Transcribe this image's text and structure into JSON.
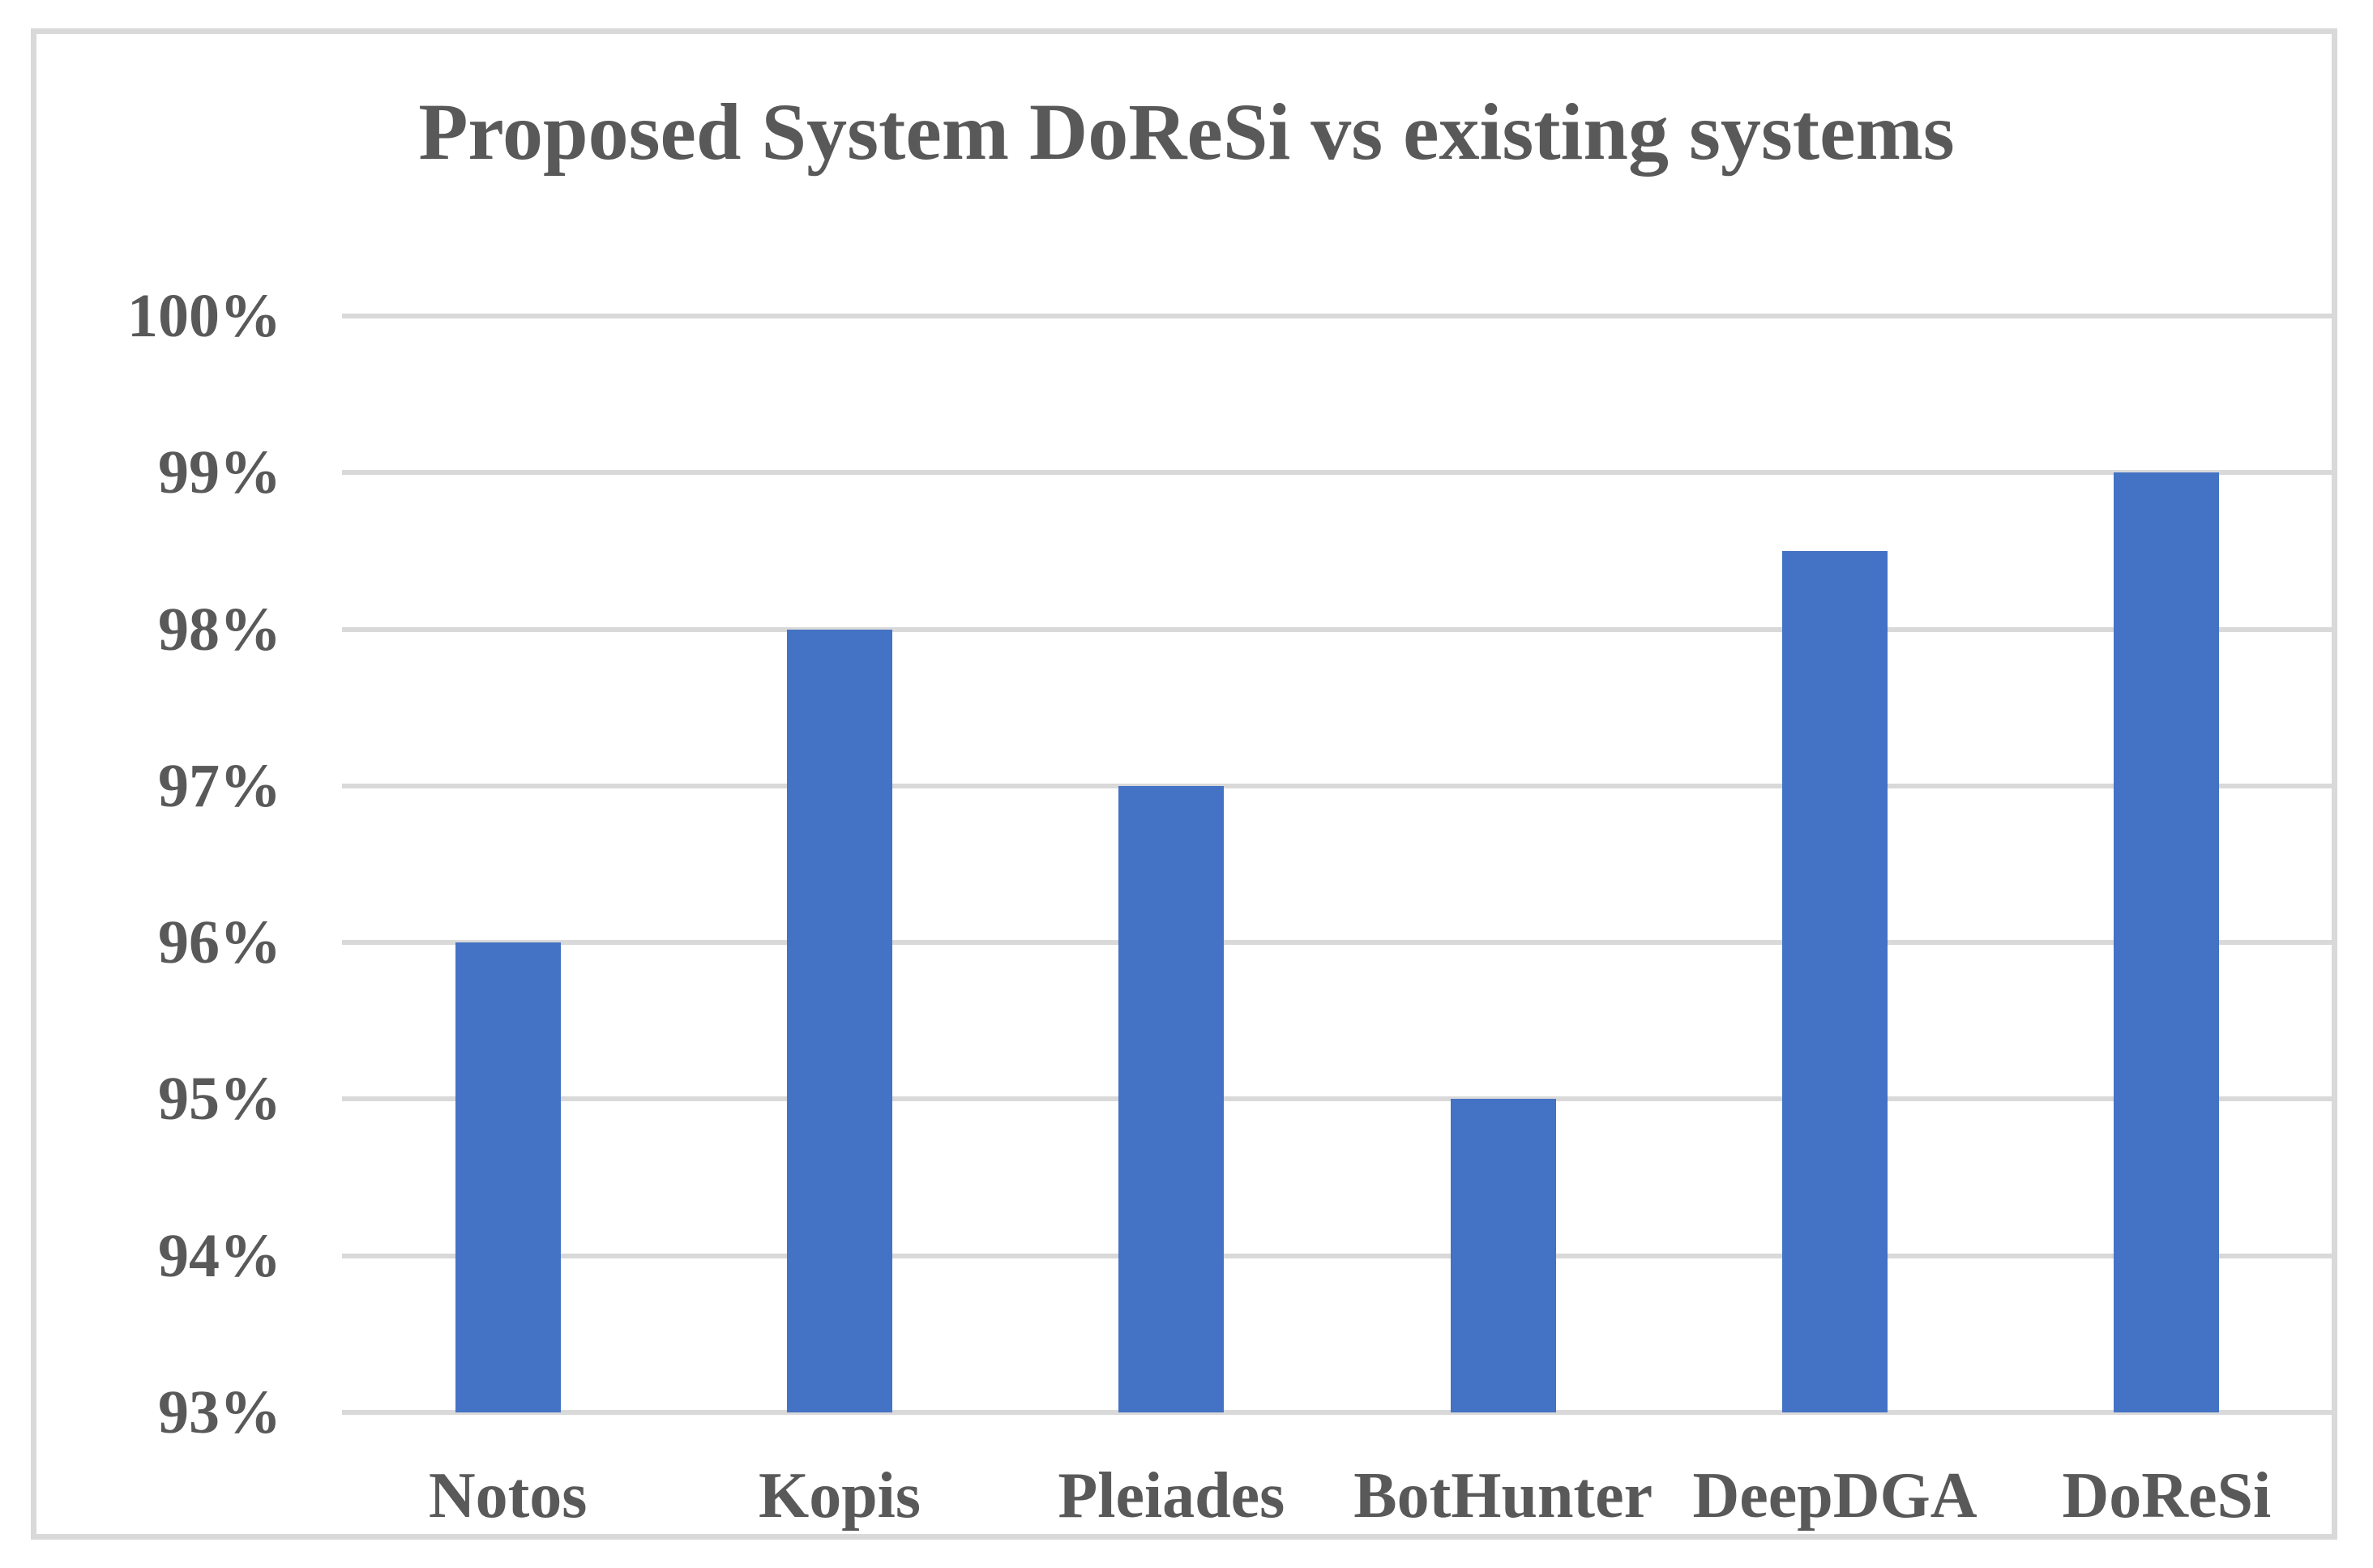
{
  "chart_data": {
    "type": "bar",
    "title": "Proposed System DoReSi vs existing systems",
    "categories": [
      "Notos",
      "Kopis",
      "Pleiades",
      "BotHunter",
      "DeepDGA",
      "DoReSi"
    ],
    "values": [
      96,
      98,
      97,
      95,
      98.5,
      99
    ],
    "unit": "%",
    "xlabel": "",
    "ylabel": "",
    "ylim": [
      93,
      100
    ],
    "ytick_step": 1,
    "ytick_labels": [
      "100%",
      "99%",
      "98%",
      "97%",
      "96%",
      "95%",
      "94%",
      "93%"
    ],
    "grid": true,
    "legend": false,
    "colors": {
      "bar": "#4472c4",
      "gridline": "#d9d9d9",
      "frame_border": "#d9d9d9",
      "text": "#595959",
      "background": "#ffffff"
    }
  }
}
